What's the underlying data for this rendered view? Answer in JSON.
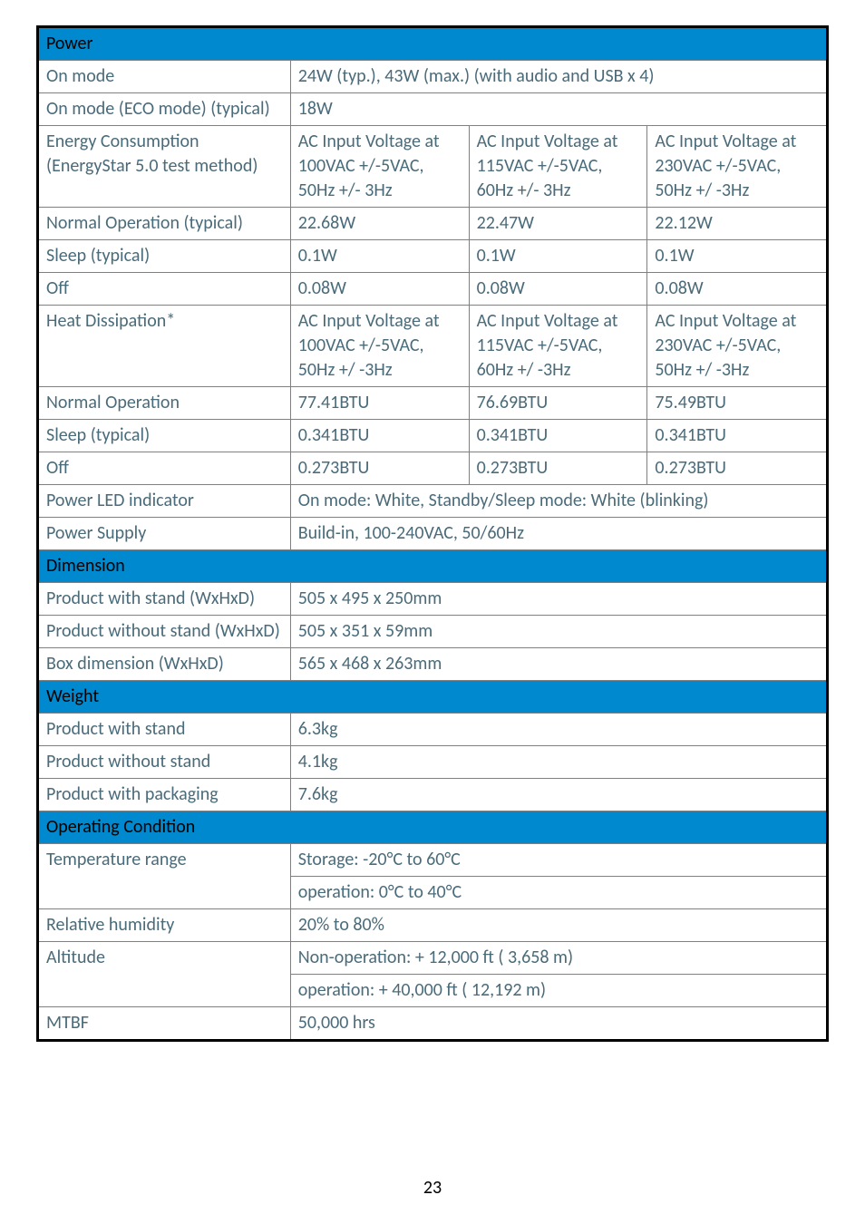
{
  "sections": {
    "power": {
      "header": "Power",
      "rows": {
        "on_mode": {
          "label": "On mode",
          "value": "24W (typ.), 43W (max.) (with audio and USB x 4)"
        },
        "on_mode_eco": {
          "label": "On mode (ECO mode) (typical)",
          "value": "18W"
        },
        "energy_consumption": {
          "label": "Energy Consumption\n(EnergyStar 5.0 test method)",
          "col1": "AC Input Voltage at 100VAC +/-5VAC, 50Hz +/- 3Hz",
          "col2": "AC Input Voltage at 115VAC +/-5VAC, 60Hz +/- 3Hz",
          "col3": "AC Input Voltage at 230VAC +/-5VAC, 50Hz +/ -3Hz"
        },
        "normal_op_typ": {
          "label": "Normal Operation (typical)",
          "c1": "22.68W",
          "c2": "22.47W",
          "c3": "22.12W"
        },
        "sleep_typ": {
          "label": "Sleep (typical)",
          "c1": "0.1W",
          "c2": "0.1W",
          "c3": "0.1W"
        },
        "off": {
          "label": "Off",
          "c1": "0.08W",
          "c2": "0.08W",
          "c3": "0.08W"
        },
        "heat_diss": {
          "label": "Heat Dissipation*",
          "col1": "AC Input Voltage at 100VAC +/-5VAC, 50Hz +/ -3Hz",
          "col2": "AC Input Voltage at 115VAC +/-5VAC, 60Hz +/ -3Hz",
          "col3": "AC Input Voltage at 230VAC +/-5VAC, 50Hz +/ -3Hz"
        },
        "normal_op": {
          "label": "Normal Operation",
          "c1": "77.41BTU",
          "c2": "76.69BTU",
          "c3": "75.49BTU"
        },
        "sleep_typ2": {
          "label": "Sleep (typical)",
          "c1": "0.341BTU",
          "c2": "0.341BTU",
          "c3": "0.341BTU"
        },
        "off2": {
          "label": "Off",
          "c1": "0.273BTU",
          "c2": "0.273BTU",
          "c3": "0.273BTU"
        },
        "power_led": {
          "label": "Power LED indicator",
          "value": "On mode: White, Standby/Sleep mode: White (blinking)"
        },
        "power_supply": {
          "label": "Power Supply",
          "value": "Build-in, 100-240VAC, 50/60Hz"
        }
      }
    },
    "dimension": {
      "header": "Dimension",
      "rows": {
        "with_stand": {
          "label": "Product with stand (WxHxD)",
          "value": "505 x 495 x 250mm"
        },
        "without_stand": {
          "label": "Product without stand (WxHxD)",
          "value": "505 x 351 x 59mm"
        },
        "box": {
          "label": "Box dimension (WxHxD)",
          "value": "565 x 468 x 263mm"
        }
      }
    },
    "weight": {
      "header": "Weight",
      "rows": {
        "with_stand": {
          "label": "Product with stand",
          "value": "6.3kg"
        },
        "without_stand": {
          "label": "Product without stand",
          "value": "4.1kg"
        },
        "packaging": {
          "label": "Product with packaging",
          "value": "7.6kg"
        }
      }
    },
    "operating": {
      "header": "Operating Condition",
      "rows": {
        "temp_storage": {
          "label": "Temperature range",
          "value": "Storage: -20°C to 60°C"
        },
        "temp_op": {
          "value": "operation: 0°C to 40°C"
        },
        "humidity": {
          "label": "Relative humidity",
          "value": "20% to 80%"
        },
        "alt_nonop": {
          "label": "Altitude",
          "value": "Non-operation: + 12,000 ft ( 3,658 m)"
        },
        "alt_op": {
          "value": "operation: + 40,000 ft ( 12,192 m)"
        },
        "mtbf": {
          "label": "MTBF",
          "value": "50,000 hrs"
        }
      }
    }
  },
  "page_number": "23"
}
